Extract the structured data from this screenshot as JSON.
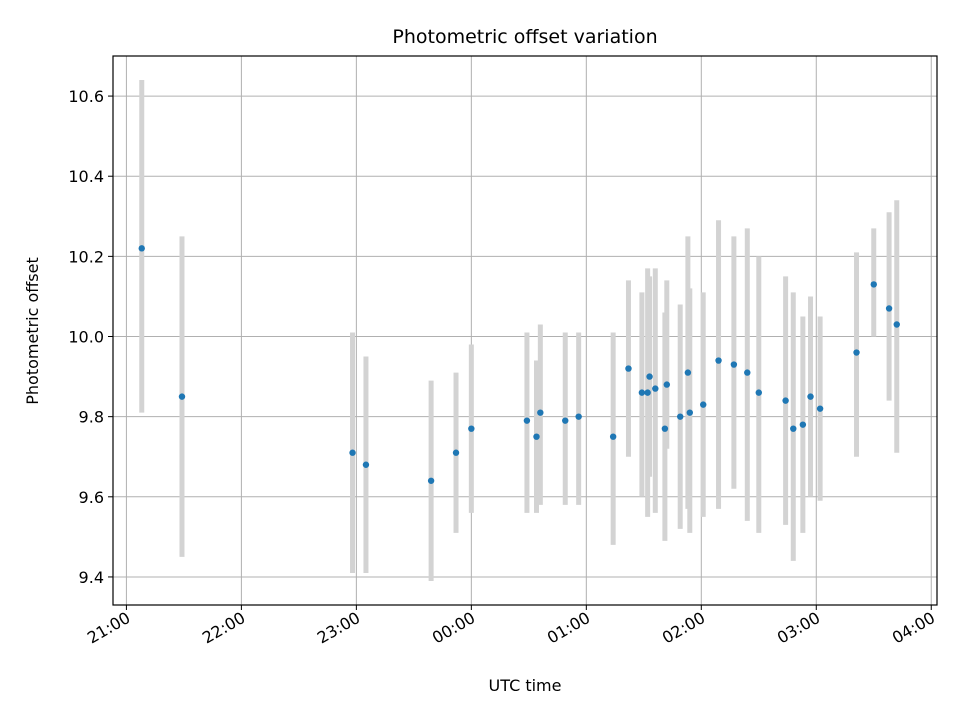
{
  "chart_data": {
    "type": "scatter",
    "title": "Photometric offset variation",
    "xlabel": "UTC time",
    "ylabel": "Photometric offset",
    "grid": true,
    "xlim": [
      "20:53",
      "04:03"
    ],
    "ylim": [
      9.33,
      10.7
    ],
    "x_ticks": [
      "21:00",
      "22:00",
      "23:00",
      "00:00",
      "01:00",
      "02:00",
      "03:00",
      "04:00"
    ],
    "y_ticks": [
      9.4,
      9.6,
      9.8,
      10.0,
      10.2,
      10.4,
      10.6
    ],
    "colors": {
      "point": "#1f77b4",
      "errorbar": "#d3d3d3",
      "grid": "#b0b0b0"
    },
    "series": [
      {
        "points": [
          {
            "x": "21:08",
            "y": 10.22,
            "ylow": 9.81,
            "yhigh": 10.64
          },
          {
            "x": "21:29",
            "y": 9.85,
            "ylow": 9.45,
            "yhigh": 10.25
          },
          {
            "x": "22:58",
            "y": 9.71,
            "ylow": 9.41,
            "yhigh": 10.01
          },
          {
            "x": "23:05",
            "y": 9.68,
            "ylow": 9.41,
            "yhigh": 9.95
          },
          {
            "x": "23:39",
            "y": 9.64,
            "ylow": 9.39,
            "yhigh": 9.89
          },
          {
            "x": "23:52",
            "y": 9.71,
            "ylow": 9.51,
            "yhigh": 9.91
          },
          {
            "x": "00:00",
            "y": 9.77,
            "ylow": 9.56,
            "yhigh": 9.98
          },
          {
            "x": "00:29",
            "y": 9.79,
            "ylow": 9.56,
            "yhigh": 10.01
          },
          {
            "x": "00:34",
            "y": 9.75,
            "ylow": 9.56,
            "yhigh": 9.94
          },
          {
            "x": "00:36",
            "y": 9.81,
            "ylow": 9.58,
            "yhigh": 10.03
          },
          {
            "x": "00:49",
            "y": 9.79,
            "ylow": 9.58,
            "yhigh": 10.01
          },
          {
            "x": "00:56",
            "y": 9.8,
            "ylow": 9.58,
            "yhigh": 10.01
          },
          {
            "x": "01:14",
            "y": 9.75,
            "ylow": 9.48,
            "yhigh": 10.01
          },
          {
            "x": "01:22",
            "y": 9.92,
            "ylow": 9.7,
            "yhigh": 10.14
          },
          {
            "x": "01:29",
            "y": 9.86,
            "ylow": 9.6,
            "yhigh": 10.11
          },
          {
            "x": "01:32",
            "y": 9.86,
            "ylow": 9.55,
            "yhigh": 10.17
          },
          {
            "x": "01:33",
            "y": 9.9,
            "ylow": 9.65,
            "yhigh": 10.15
          },
          {
            "x": "01:36",
            "y": 9.87,
            "ylow": 9.56,
            "yhigh": 10.17
          },
          {
            "x": "01:41",
            "y": 9.77,
            "ylow": 9.49,
            "yhigh": 10.06
          },
          {
            "x": "01:42",
            "y": 9.88,
            "ylow": 9.72,
            "yhigh": 10.14
          },
          {
            "x": "01:49",
            "y": 9.8,
            "ylow": 9.52,
            "yhigh": 10.08
          },
          {
            "x": "01:53",
            "y": 9.91,
            "ylow": 9.57,
            "yhigh": 10.25
          },
          {
            "x": "01:54",
            "y": 9.81,
            "ylow": 9.51,
            "yhigh": 10.12
          },
          {
            "x": "02:01",
            "y": 9.83,
            "ylow": 9.55,
            "yhigh": 10.11
          },
          {
            "x": "02:09",
            "y": 9.94,
            "ylow": 9.57,
            "yhigh": 10.29
          },
          {
            "x": "02:17",
            "y": 9.93,
            "ylow": 9.62,
            "yhigh": 10.25
          },
          {
            "x": "02:24",
            "y": 9.91,
            "ylow": 9.54,
            "yhigh": 10.27
          },
          {
            "x": "02:30",
            "y": 9.86,
            "ylow": 9.51,
            "yhigh": 10.2
          },
          {
            "x": "02:44",
            "y": 9.84,
            "ylow": 9.53,
            "yhigh": 10.15
          },
          {
            "x": "02:48",
            "y": 9.77,
            "ylow": 9.44,
            "yhigh": 10.11
          },
          {
            "x": "02:53",
            "y": 9.78,
            "ylow": 9.51,
            "yhigh": 10.05
          },
          {
            "x": "02:57",
            "y": 9.85,
            "ylow": 9.6,
            "yhigh": 10.1
          },
          {
            "x": "03:02",
            "y": 9.82,
            "ylow": 9.59,
            "yhigh": 10.05
          },
          {
            "x": "03:21",
            "y": 9.96,
            "ylow": 9.7,
            "yhigh": 10.21
          },
          {
            "x": "03:30",
            "y": 10.13,
            "ylow": 10.0,
            "yhigh": 10.27
          },
          {
            "x": "03:38",
            "y": 10.07,
            "ylow": 9.84,
            "yhigh": 10.31
          },
          {
            "x": "03:42",
            "y": 10.03,
            "ylow": 9.71,
            "yhigh": 10.34
          }
        ]
      }
    ]
  }
}
